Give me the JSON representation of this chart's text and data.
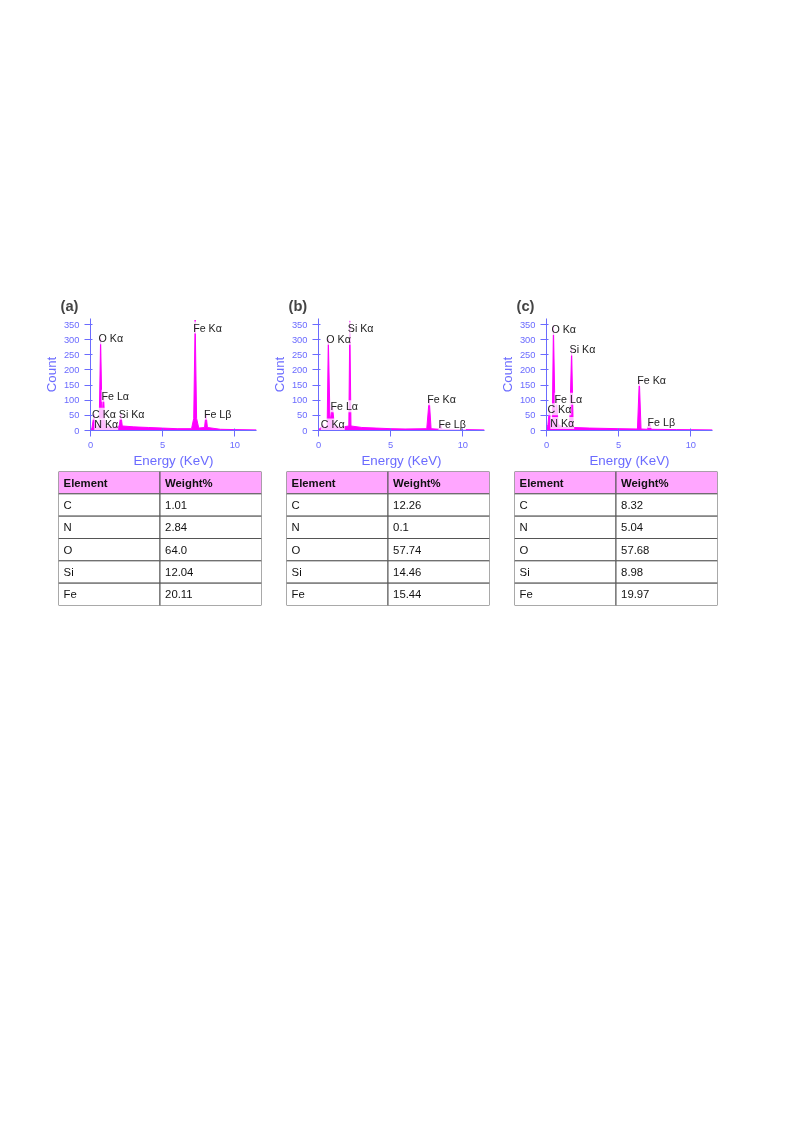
{
  "chart_data": [
    {
      "type": "area",
      "title": "(a)",
      "xlabel": "Energy (KeV)",
      "ylabel": "Count",
      "color": "#ff00ff",
      "x": [
        0,
        0.1,
        0.25,
        0.35,
        0.4,
        0.5,
        0.6,
        0.7,
        0.8,
        0.9,
        1.0,
        1.2,
        1.6,
        2.0,
        2.1,
        2.2,
        3,
        4,
        5,
        6,
        7.0,
        7.15,
        7.25,
        7.35,
        7.5,
        7.9,
        8.0,
        8.1,
        9,
        10,
        11.5
      ],
      "values": [
        0,
        8,
        55,
        8,
        20,
        10,
        20,
        305,
        40,
        115,
        20,
        12,
        10,
        15,
        55,
        15,
        12,
        10,
        8,
        6,
        6,
        40,
        365,
        40,
        8,
        10,
        55,
        10,
        4,
        3,
        2
      ],
      "xlim": [
        0,
        11.5
      ],
      "ylim": [
        0,
        370
      ],
      "xticks": [
        0,
        5,
        10
      ],
      "yticks": [
        0,
        50,
        100,
        150,
        200,
        250,
        300,
        350
      ],
      "annotations": [
        {
          "text": "O Kα",
          "x": 0.7,
          "y": 305
        },
        {
          "text": "Fe Kα",
          "x": 7.25,
          "y": 340
        },
        {
          "text": "Fe Lα",
          "x": 0.9,
          "y": 115
        },
        {
          "text": "C Kα",
          "x": 0.25,
          "y": 55
        },
        {
          "text": "N Kα",
          "x": 0.4,
          "y": 20
        },
        {
          "text": "Si Kα",
          "x": 2.1,
          "y": 55
        },
        {
          "text": "Fe Lβ",
          "x": 8.0,
          "y": 55
        },
        "Element",
        "Weight%",
        "C",
        "1.01",
        "N",
        "2.84",
        "O",
        "64.0",
        "Si",
        "12.04",
        "Fe",
        "20.11"
      ]
    },
    {
      "type": "area",
      "title": "(b)",
      "xlabel": "Energy (KeV)",
      "ylabel": "Count",
      "color": "#ff00ff",
      "x": [
        0,
        0.2,
        0.3,
        0.4,
        0.6,
        0.68,
        0.8,
        0.97,
        1.1,
        1.5,
        2.1,
        2.17,
        2.25,
        3,
        4,
        5,
        6,
        7.5,
        7.67,
        7.8,
        8.35,
        8.45,
        8.55,
        10,
        11.5
      ],
      "values": [
        3,
        10,
        20,
        8,
        15,
        303,
        30,
        80,
        15,
        10,
        15,
        362,
        15,
        10,
        8,
        6,
        5,
        6,
        103,
        6,
        4,
        20,
        4,
        3,
        2
      ],
      "xlim": [
        0,
        11.5
      ],
      "ylim": [
        0,
        370
      ],
      "xticks": [
        0,
        5,
        10
      ],
      "yticks": [
        0,
        50,
        100,
        150,
        200,
        250,
        300,
        350
      ],
      "annotations": [
        {
          "text": "O Kα",
          "x": 0.68,
          "y": 303
        },
        {
          "text": "Si Kα",
          "x": 2.17,
          "y": 340
        },
        {
          "text": "Fe Lα",
          "x": 0.97,
          "y": 80
        },
        {
          "text": "C Kα",
          "x": 0.3,
          "y": 20
        },
        {
          "text": "Fe Kα",
          "x": 7.67,
          "y": 103
        },
        {
          "text": "Fe Lβ",
          "x": 8.45,
          "y": 20
        },
        "Element",
        "Weight%",
        "C",
        "12.26",
        "N",
        "0.1",
        "O",
        "57.74",
        "Si",
        "14.46",
        "Fe",
        "15.44"
      ]
    },
    {
      "type": "area",
      "title": "(c)",
      "xlabel": "Energy (KeV)",
      "ylabel": "Count",
      "color": "#ff00ff",
      "x": [
        0,
        0.1,
        0.2,
        0.3,
        0.4,
        0.48,
        0.6,
        0.7,
        0.8,
        1.2,
        1.6,
        1.74,
        1.85,
        3,
        5,
        6.3,
        6.43,
        6.55,
        7.0,
        7.14,
        7.25,
        9,
        11.5
      ],
      "values": [
        5,
        20,
        70,
        15,
        25,
        347,
        30,
        105,
        20,
        10,
        10,
        268,
        10,
        8,
        6,
        5,
        167,
        5,
        4,
        28,
        4,
        3,
        2
      ],
      "xlim": [
        0,
        11.5
      ],
      "ylim": [
        0,
        370
      ],
      "xticks": [
        0,
        5,
        10
      ],
      "yticks": [
        0,
        50,
        100,
        150,
        200,
        250,
        300,
        350
      ],
      "annotations": [
        {
          "text": "O Kα",
          "x": 0.48,
          "y": 335
        },
        {
          "text": "Si Kα",
          "x": 1.74,
          "y": 268
        },
        {
          "text": "Fe Lα",
          "x": 0.7,
          "y": 105
        },
        {
          "text": "C Kα",
          "x": 0.2,
          "y": 70
        },
        {
          "text": "N Kα",
          "x": 0.4,
          "y": 25
        },
        {
          "text": "Fe Kα",
          "x": 6.43,
          "y": 167
        },
        {
          "text": "Fe Lβ",
          "x": 7.14,
          "y": 28
        },
        "Element",
        "Weight%",
        "C",
        "8.32",
        "N",
        "5.04",
        "O",
        "57.68",
        "Si",
        "8.98",
        "Fe",
        "19.97"
      ]
    }
  ]
}
